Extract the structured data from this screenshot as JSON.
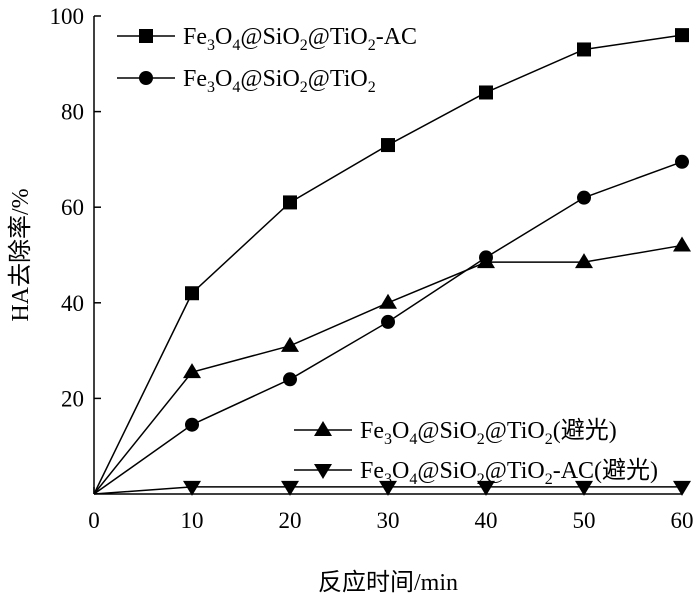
{
  "chart_data": {
    "type": "line",
    "title": "",
    "xlabel": "反应时间/min",
    "ylabel": "HA去除率/%",
    "xlim": [
      0,
      60
    ],
    "ylim": [
      0,
      100
    ],
    "xticks": [
      0,
      10,
      20,
      30,
      40,
      50,
      60
    ],
    "yticks": [
      20,
      40,
      60,
      80,
      100
    ],
    "x": [
      0,
      10,
      20,
      30,
      40,
      50,
      60
    ],
    "grid": false,
    "series": [
      {
        "name": "Fe3O4@SiO2@TiO2-AC",
        "label_parts": [
          [
            "Fe",
            ""
          ],
          [
            "3",
            "sub"
          ],
          [
            "O",
            ""
          ],
          [
            "4",
            "sub"
          ],
          [
            "@SiO",
            ""
          ],
          [
            "2",
            "sub"
          ],
          [
            "@TiO",
            ""
          ],
          [
            "2",
            "sub"
          ],
          [
            "-AC",
            ""
          ]
        ],
        "marker": "square",
        "values": [
          0,
          42,
          61,
          73,
          84,
          93,
          96
        ]
      },
      {
        "name": "Fe3O4@SiO2@TiO2",
        "label_parts": [
          [
            "Fe",
            ""
          ],
          [
            "3",
            "sub"
          ],
          [
            "O",
            ""
          ],
          [
            "4",
            "sub"
          ],
          [
            "@SiO",
            ""
          ],
          [
            "2",
            "sub"
          ],
          [
            "@TiO",
            ""
          ],
          [
            "2",
            "sub"
          ]
        ],
        "marker": "circle",
        "values": [
          0,
          14.5,
          24,
          36,
          49.5,
          62,
          69.5
        ]
      },
      {
        "name": "Fe3O4@SiO2@TiO2(避光)",
        "label_parts": [
          [
            "Fe",
            ""
          ],
          [
            "3",
            "sub"
          ],
          [
            "O",
            ""
          ],
          [
            "4",
            "sub"
          ],
          [
            "@SiO",
            ""
          ],
          [
            "2",
            "sub"
          ],
          [
            "@TiO",
            ""
          ],
          [
            "2",
            "sub"
          ],
          [
            "(避光)",
            ""
          ]
        ],
        "marker": "triangle-up",
        "values": [
          0,
          25.5,
          31,
          40,
          48.5,
          48.5,
          52
        ]
      },
      {
        "name": "Fe3O4@SiO2@TiO2-AC(避光)",
        "label_parts": [
          [
            "Fe",
            ""
          ],
          [
            "3",
            "sub"
          ],
          [
            "O",
            ""
          ],
          [
            "4",
            "sub"
          ],
          [
            "@SiO",
            ""
          ],
          [
            "2",
            "sub"
          ],
          [
            "@TiO",
            ""
          ],
          [
            "2",
            "sub"
          ],
          [
            "-AC(避光)",
            ""
          ]
        ],
        "marker": "triangle-down",
        "values": [
          0,
          1.5,
          1.5,
          1.5,
          1.5,
          1.5,
          1.5
        ]
      }
    ],
    "legend": [
      {
        "position": "top-left",
        "series": [
          0,
          1
        ]
      },
      {
        "position": "bottom-right",
        "series": [
          2,
          3
        ]
      }
    ],
    "colors": {
      "line": "#000000",
      "marker": "#000000"
    }
  }
}
